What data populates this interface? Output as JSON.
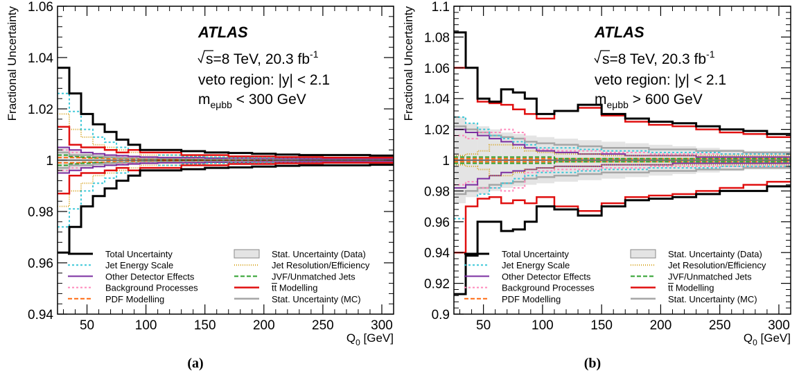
{
  "chart_data": [
    {
      "panel": "(a)",
      "type": "line",
      "ylabel": "Fractional Uncertainty",
      "xlabel": "Q",
      "xlabel_sub": "0",
      "xlabel_unit": " [GeV]",
      "xlim": [
        25,
        310
      ],
      "ylim": [
        0.94,
        1.06
      ],
      "xticks": [
        50,
        100,
        150,
        200,
        250,
        300
      ],
      "yticks": [
        0.94,
        0.96,
        0.98,
        1.0,
        1.02,
        1.04,
        1.06
      ],
      "ytick_labels": [
        "0.94",
        "0.96",
        "0.98",
        "1",
        "1.02",
        "1.04",
        "1.06"
      ],
      "atlas_label": "ATLAS",
      "energy_text": "s=8 TeV, 20.3 fb",
      "lumi_exp": "-1",
      "region_text": "veto region: |y| < 2.1",
      "mass_text_main": "m",
      "mass_text_sub": "eμbb",
      "mass_text_rest": " < 300 GeV",
      "bin_edges": [
        25,
        35,
        45,
        55,
        65,
        75,
        85,
        95,
        110,
        130,
        150,
        170,
        190,
        210,
        230,
        250,
        270,
        290,
        310
      ],
      "stat_data_band": [
        0.005,
        0.004,
        0.003,
        0.0025,
        0.0022,
        0.002,
        0.0018,
        0.0016,
        0.0014,
        0.0013,
        0.0012,
        0.0011,
        0.001,
        0.001,
        0.001,
        0.001,
        0.001,
        0.001
      ],
      "series": [
        {
          "key": "total",
          "up": [
            0.036,
            0.026,
            0.018,
            0.014,
            0.011,
            0.008,
            0.006,
            0.004,
            0.004,
            0.0035,
            0.003,
            0.0028,
            0.0025,
            0.0022,
            0.002,
            0.002,
            0.002,
            0.0018
          ],
          "down": [
            -0.036,
            -0.026,
            -0.018,
            -0.014,
            -0.011,
            -0.008,
            -0.006,
            -0.004,
            -0.004,
            -0.0035,
            -0.003,
            -0.0028,
            -0.0025,
            -0.0022,
            -0.002,
            -0.002,
            -0.002,
            -0.0018
          ]
        },
        {
          "key": "jes",
          "up": [
            0.026,
            0.019,
            0.012,
            0.009,
            0.007,
            0.005,
            0.004,
            0.003,
            0.002,
            0.0015,
            0.0012,
            0.001,
            0.001,
            0.001,
            0.001,
            0.001,
            0.001,
            0.001
          ],
          "down": [
            -0.026,
            -0.019,
            -0.012,
            -0.009,
            -0.007,
            -0.005,
            -0.004,
            -0.003,
            -0.002,
            -0.0015,
            -0.0012,
            -0.001,
            -0.001,
            -0.001,
            -0.001,
            -0.001,
            -0.001,
            -0.001
          ]
        },
        {
          "key": "jer",
          "up": [
            0.018,
            0.012,
            0.009,
            0.006,
            0.005,
            0.004,
            0.003,
            0.002,
            0.002,
            0.0015,
            0.0012,
            0.001,
            0.001,
            0.001,
            0.001,
            0.001,
            0.001,
            0.001
          ],
          "down": [
            -0.018,
            -0.012,
            -0.009,
            -0.006,
            -0.005,
            -0.004,
            -0.003,
            -0.002,
            -0.002,
            -0.0015,
            -0.0012,
            -0.001,
            -0.001,
            -0.001,
            -0.001,
            -0.001,
            -0.001,
            -0.001
          ]
        },
        {
          "key": "other",
          "up": [
            0.005,
            0.004,
            0.003,
            0.0025,
            0.002,
            0.0018,
            0.0015,
            0.0012,
            0.001,
            0.001,
            0.0008,
            0.0008,
            0.0007,
            0.0007,
            0.0006,
            0.0006,
            0.0006,
            0.0006
          ],
          "down": [
            -0.005,
            -0.004,
            -0.003,
            -0.0025,
            -0.002,
            -0.0018,
            -0.0015,
            -0.0012,
            -0.001,
            -0.001,
            -0.0008,
            -0.0008,
            -0.0007,
            -0.0007,
            -0.0006,
            -0.0006,
            -0.0006,
            -0.0006
          ]
        },
        {
          "key": "jvf",
          "up": [
            0.002,
            0.0015,
            0.0012,
            0.001,
            0.001,
            0.0008,
            0.0008,
            0.0006,
            0.0006,
            0.0005,
            0.0005,
            0.0005,
            0.0005,
            0.0005,
            0.0005,
            0.0005,
            0.0005,
            0.0005
          ],
          "down": [
            -0.002,
            -0.0015,
            -0.0012,
            -0.001,
            -0.001,
            -0.0008,
            -0.0008,
            -0.0006,
            -0.0006,
            -0.0005,
            -0.0005,
            -0.0005,
            -0.0005,
            -0.0005,
            -0.0005,
            -0.0005,
            -0.0005,
            -0.0005
          ]
        },
        {
          "key": "bkg",
          "up": [
            0.004,
            0.003,
            0.003,
            0.0025,
            0.002,
            0.0015,
            0.0012,
            0.001,
            0.001,
            0.0008,
            0.0008,
            0.0007,
            0.0006,
            0.0006,
            0.0006,
            0.0006,
            0.0006,
            0.0006
          ],
          "down": [
            -0.004,
            -0.003,
            -0.003,
            -0.0025,
            -0.002,
            -0.0015,
            -0.0012,
            -0.001,
            -0.001,
            -0.0008,
            -0.0008,
            -0.0007,
            -0.0006,
            -0.0006,
            -0.0006,
            -0.0006,
            -0.0006,
            -0.0006
          ]
        },
        {
          "key": "ttbar",
          "up": [
            0.013,
            0.006,
            0.005,
            0.005,
            0.004,
            0.003,
            0.004,
            0.003,
            0.003,
            0.002,
            0.002,
            0.0015,
            0.0015,
            0.0012,
            0.0012,
            0.001,
            0.001,
            0.001
          ],
          "down": [
            -0.013,
            -0.006,
            -0.005,
            -0.005,
            -0.004,
            -0.003,
            -0.004,
            -0.003,
            -0.003,
            -0.002,
            -0.002,
            -0.0015,
            -0.0015,
            -0.0012,
            -0.0012,
            -0.001,
            -0.001,
            -0.001
          ]
        },
        {
          "key": "pdf",
          "up": [
            0.001,
            0.001,
            0.0008,
            0.0008,
            0.0006,
            0.0006,
            0.0005,
            0.0005,
            0.0004,
            0.0004,
            0.0004,
            0.0004,
            0.0004,
            0.0004,
            0.0004,
            0.0004,
            0.0004,
            0.0004
          ],
          "down": [
            -0.001,
            -0.001,
            -0.0008,
            -0.0008,
            -0.0006,
            -0.0006,
            -0.0005,
            -0.0005,
            -0.0004,
            -0.0004,
            -0.0004,
            -0.0004,
            -0.0004,
            -0.0004,
            -0.0004,
            -0.0004,
            -0.0004,
            -0.0004
          ]
        },
        {
          "key": "mcstat",
          "up": [
            0.003,
            0.002,
            0.002,
            0.0015,
            0.0012,
            0.001,
            0.001,
            0.0008,
            0.0008,
            0.0007,
            0.0006,
            0.0006,
            0.0006,
            0.0005,
            0.0005,
            0.0005,
            0.0005,
            0.0005
          ],
          "down": [
            -0.003,
            -0.002,
            -0.002,
            -0.0015,
            -0.0012,
            -0.001,
            -0.001,
            -0.0008,
            -0.0008,
            -0.0007,
            -0.0006,
            -0.0006,
            -0.0006,
            -0.0005,
            -0.0005,
            -0.0005,
            -0.0005,
            -0.0005
          ]
        }
      ],
      "caption": "(a)"
    },
    {
      "panel": "(b)",
      "type": "line",
      "ylabel": "Fractional Uncertainty",
      "xlabel": "Q",
      "xlabel_sub": "0",
      "xlabel_unit": " [GeV]",
      "xlim": [
        25,
        310
      ],
      "ylim": [
        0.9,
        1.1
      ],
      "xticks": [
        50,
        100,
        150,
        200,
        250,
        300
      ],
      "yticks": [
        0.9,
        0.92,
        0.94,
        0.96,
        0.98,
        1.0,
        1.02,
        1.04,
        1.06,
        1.08,
        1.1
      ],
      "ytick_labels": [
        "0.9",
        "0.92",
        "0.94",
        "0.96",
        "0.98",
        "1",
        "1.02",
        "1.04",
        "1.06",
        "1.08",
        "1.1"
      ],
      "atlas_label": "ATLAS",
      "energy_text": "s=8 TeV, 20.3 fb",
      "lumi_exp": "-1",
      "region_text": "veto region: |y| < 2.1",
      "mass_text_main": "m",
      "mass_text_sub": "eμbb",
      "mass_text_rest": " > 600 GeV",
      "bin_edges": [
        25,
        35,
        45,
        55,
        65,
        75,
        85,
        95,
        110,
        130,
        150,
        170,
        190,
        210,
        230,
        250,
        270,
        290,
        310
      ],
      "stat_data_band": [
        0.028,
        0.024,
        0.022,
        0.02,
        0.018,
        0.017,
        0.016,
        0.015,
        0.014,
        0.013,
        0.012,
        0.011,
        0.01,
        0.009,
        0.008,
        0.007,
        0.006,
        0.006
      ],
      "series": [
        {
          "key": "total",
          "up": [
            0.083,
            0.06,
            0.04,
            0.038,
            0.046,
            0.044,
            0.04,
            0.03,
            0.032,
            0.036,
            0.03,
            0.027,
            0.025,
            0.024,
            0.022,
            0.02,
            0.019,
            0.017
          ],
          "down": [
            -0.087,
            -0.062,
            -0.04,
            -0.04,
            -0.046,
            -0.045,
            -0.04,
            -0.03,
            -0.032,
            -0.036,
            -0.03,
            -0.026,
            -0.025,
            -0.024,
            -0.022,
            -0.02,
            -0.02,
            -0.017
          ]
        },
        {
          "key": "jes",
          "up": [
            0.028,
            0.024,
            0.02,
            0.016,
            0.014,
            0.012,
            0.01,
            0.008,
            0.008,
            0.007,
            0.006,
            0.006,
            0.005,
            0.005,
            0.005,
            0.004,
            0.004,
            0.004
          ],
          "down": [
            -0.038,
            -0.03,
            -0.022,
            -0.018,
            -0.015,
            -0.012,
            -0.01,
            -0.008,
            -0.008,
            -0.007,
            -0.006,
            -0.006,
            -0.005,
            -0.005,
            -0.005,
            -0.004,
            -0.004,
            -0.004
          ]
        },
        {
          "key": "jer",
          "up": [
            0.003,
            0.004,
            0.006,
            0.01,
            0.01,
            0.008,
            0.006,
            0.005,
            0.004,
            0.004,
            0.003,
            0.003,
            0.003,
            0.003,
            0.003,
            0.003,
            0.003,
            0.003
          ],
          "down": [
            -0.003,
            -0.004,
            -0.006,
            -0.01,
            -0.01,
            -0.008,
            -0.006,
            -0.005,
            -0.004,
            -0.004,
            -0.003,
            -0.003,
            -0.003,
            -0.003,
            -0.003,
            -0.003,
            -0.003,
            -0.003
          ]
        },
        {
          "key": "other",
          "up": [
            0.02,
            0.018,
            0.016,
            0.014,
            0.012,
            0.01,
            0.008,
            0.006,
            0.005,
            0.004,
            0.004,
            0.003,
            0.003,
            0.003,
            0.002,
            0.002,
            0.002,
            0.002
          ],
          "down": [
            -0.018,
            -0.016,
            -0.012,
            -0.01,
            -0.008,
            -0.007,
            -0.006,
            -0.005,
            -0.004,
            -0.004,
            -0.003,
            -0.003,
            -0.003,
            -0.002,
            -0.002,
            -0.002,
            -0.002,
            -0.002
          ]
        },
        {
          "key": "jvf",
          "up": [
            0.002,
            0.002,
            0.002,
            0.002,
            0.002,
            0.002,
            0.002,
            0.002,
            0.001,
            0.001,
            0.001,
            0.001,
            0.001,
            0.001,
            0.001,
            0.001,
            0.001,
            0.001
          ],
          "down": [
            -0.002,
            -0.002,
            -0.002,
            -0.002,
            -0.002,
            -0.002,
            -0.002,
            -0.002,
            -0.001,
            -0.001,
            -0.001,
            -0.001,
            -0.001,
            -0.001,
            -0.001,
            -0.001,
            -0.001,
            -0.001
          ]
        },
        {
          "key": "bkg",
          "up": [
            0.016,
            0.014,
            0.018,
            0.018,
            0.02,
            0.018,
            0.008,
            0.007,
            0.006,
            0.006,
            0.005,
            0.005,
            0.004,
            0.004,
            0.004,
            0.004,
            0.004,
            0.004
          ],
          "down": [
            -0.016,
            -0.014,
            -0.018,
            -0.018,
            -0.02,
            -0.018,
            -0.008,
            -0.007,
            -0.006,
            -0.006,
            -0.005,
            -0.005,
            -0.004,
            -0.004,
            -0.004,
            -0.004,
            -0.004,
            -0.004
          ]
        },
        {
          "key": "ttbar",
          "up": [
            0.06,
            0.06,
            0.038,
            0.037,
            0.036,
            0.033,
            0.03,
            0.027,
            0.032,
            0.034,
            0.029,
            0.025,
            0.023,
            0.022,
            0.02,
            0.018,
            0.017,
            0.015
          ],
          "down": [
            -0.06,
            -0.03,
            -0.025,
            -0.024,
            -0.028,
            -0.026,
            -0.028,
            -0.024,
            -0.03,
            -0.033,
            -0.028,
            -0.024,
            -0.023,
            -0.022,
            -0.02,
            -0.018,
            -0.016,
            -0.014
          ]
        },
        {
          "key": "pdf",
          "up": [
            0.001,
            0.001,
            0.001,
            0.001,
            0.001,
            0.001,
            0.001,
            0.001,
            0.001,
            0.001,
            0.001,
            0.001,
            0.001,
            0.001,
            0.001,
            0.001,
            0.001,
            0.001
          ],
          "down": [
            -0.001,
            -0.001,
            -0.001,
            -0.001,
            -0.001,
            -0.001,
            -0.001,
            -0.001,
            -0.001,
            -0.001,
            -0.001,
            -0.001,
            -0.001,
            -0.001,
            -0.001,
            -0.001,
            -0.001,
            -0.001
          ]
        },
        {
          "key": "mcstat",
          "up": [
            0.022,
            0.02,
            0.018,
            0.016,
            0.015,
            0.014,
            0.012,
            0.011,
            0.01,
            0.009,
            0.008,
            0.008,
            0.007,
            0.007,
            0.006,
            0.006,
            0.005,
            0.005
          ],
          "down": [
            -0.022,
            -0.02,
            -0.018,
            -0.016,
            -0.015,
            -0.014,
            -0.012,
            -0.011,
            -0.01,
            -0.009,
            -0.008,
            -0.008,
            -0.007,
            -0.007,
            -0.006,
            -0.006,
            -0.005,
            -0.005
          ]
        }
      ],
      "caption": "(b)"
    }
  ],
  "legend": {
    "left": [
      {
        "key": "total",
        "label": "Total Uncertainty"
      },
      {
        "key": "jes",
        "label": "Jet Energy Scale"
      },
      {
        "key": "other",
        "label": "Other Detector Effects"
      },
      {
        "key": "bkg",
        "label": "Background Processes"
      },
      {
        "key": "pdf",
        "label": "PDF Modelling"
      }
    ],
    "right": [
      {
        "key": "statdata",
        "label": "Stat. Uncertainty (Data)"
      },
      {
        "key": "jer",
        "label": "Jet Resolution/Efficiency"
      },
      {
        "key": "jvf",
        "label": "JVF/Unmatched Jets"
      },
      {
        "key": "ttbar",
        "label": "tt Modelling"
      },
      {
        "key": "mcstat",
        "label": "Stat. Uncertainty (MC)"
      }
    ]
  },
  "styles": {
    "total": {
      "color": "#000000",
      "width": 3,
      "dash": ""
    },
    "jes": {
      "color": "#3cc8d8",
      "width": 2,
      "dash": "3,3"
    },
    "jer": {
      "color": "#d4a017",
      "width": 2,
      "dash": "1,2"
    },
    "other": {
      "color": "#7b2fa0",
      "width": 2,
      "dash": ""
    },
    "jvf": {
      "color": "#2ea02e",
      "width": 2,
      "dash": "6,3"
    },
    "bkg": {
      "color": "#ff88bb",
      "width": 2,
      "dash": "3,3"
    },
    "ttbar": {
      "color": "#e01010",
      "width": 2.5,
      "dash": ""
    },
    "pdf": {
      "color": "#ff6a10",
      "width": 2,
      "dash": "6,3"
    },
    "mcstat": {
      "color": "#a6a6a6",
      "width": 2.5,
      "dash": ""
    },
    "statdata": {
      "fill": "#e4e4e4",
      "stroke": "#888888"
    }
  },
  "draw_order": [
    "total",
    "ttbar",
    "jes",
    "jer",
    "other",
    "bkg",
    "mcstat",
    "jvf",
    "pdf"
  ]
}
